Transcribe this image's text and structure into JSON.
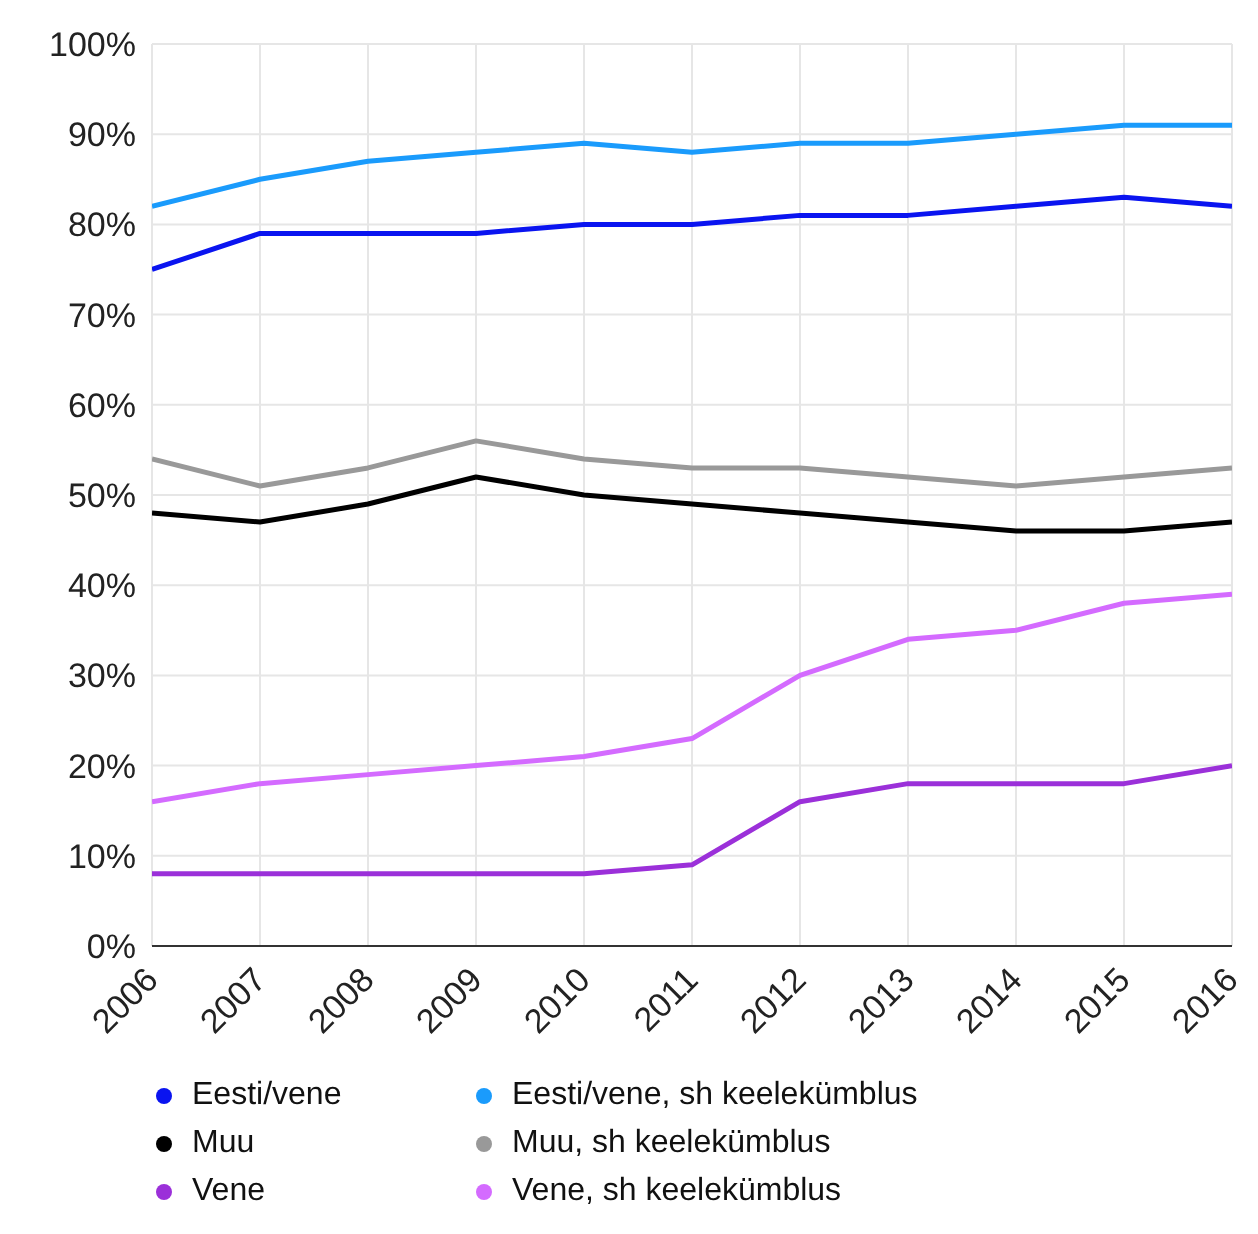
{
  "chart_data": {
    "type": "line",
    "categories": [
      "2006",
      "2007",
      "2008",
      "2009",
      "2010",
      "2011",
      "2012",
      "2013",
      "2014",
      "2015",
      "2016"
    ],
    "series": [
      {
        "name": "Eesti/vene",
        "color": "#0a14f0",
        "values": [
          75,
          79,
          79,
          79,
          80,
          80,
          81,
          81,
          82,
          83,
          82
        ]
      },
      {
        "name": "Eesti/vene, sh keelekümblus",
        "color": "#1a9bfc",
        "values": [
          82,
          85,
          87,
          88,
          89,
          88,
          89,
          89,
          90,
          91,
          91
        ]
      },
      {
        "name": "Muu",
        "color": "#000000",
        "values": [
          48,
          47,
          49,
          52,
          50,
          49,
          48,
          47,
          46,
          46,
          47
        ]
      },
      {
        "name": "Muu, sh keelekümblus",
        "color": "#999999",
        "values": [
          54,
          51,
          53,
          56,
          54,
          53,
          53,
          52,
          51,
          52,
          53
        ]
      },
      {
        "name": "Vene",
        "color": "#9b30d9",
        "values": [
          8,
          8,
          8,
          8,
          8,
          9,
          16,
          18,
          18,
          18,
          20
        ]
      },
      {
        "name": "Vene, sh keelekümblus",
        "color": "#d46bff",
        "values": [
          16,
          18,
          19,
          20,
          21,
          23,
          30,
          34,
          35,
          38,
          39
        ]
      }
    ],
    "ylim": [
      0,
      100
    ],
    "yticks": [
      {
        "value": 0,
        "label": "0%"
      },
      {
        "value": 10,
        "label": "10%"
      },
      {
        "value": 20,
        "label": "20%"
      },
      {
        "value": 30,
        "label": "30%"
      },
      {
        "value": 40,
        "label": "40%"
      },
      {
        "value": 50,
        "label": "50%"
      },
      {
        "value": 60,
        "label": "60%"
      },
      {
        "value": 70,
        "label": "70%"
      },
      {
        "value": 80,
        "label": "80%"
      },
      {
        "value": 90,
        "label": "90%"
      },
      {
        "value": 100,
        "label": "100%"
      }
    ],
    "grid": true,
    "legend": "bottom",
    "marker": "none",
    "line_style": "solid"
  }
}
